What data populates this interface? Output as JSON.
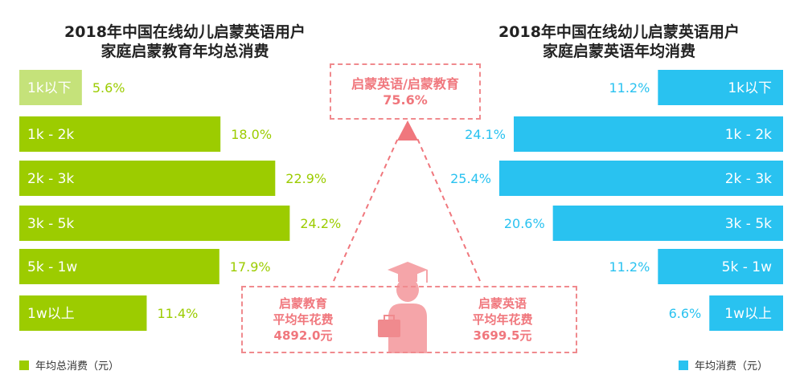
{
  "left_panel": {
    "title_line1": "2018年中国在线幼儿启蒙英语用户",
    "title_line2": "家庭启蒙教育年均总消费",
    "legend_label": "年均总消费（元）"
  },
  "right_panel": {
    "title_line1": "2018年中国在线幼儿启蒙英语用户",
    "title_line2": "家庭启蒙英语年均消费",
    "legend_label": "年均消费（元）"
  },
  "center": {
    "ratio_label": "启蒙英语/启蒙教育",
    "ratio_value": "75.6%",
    "edu_line1": "启蒙教育",
    "edu_line2": "平均年花费",
    "edu_value": "4892.0元",
    "eng_line1": "启蒙英语",
    "eng_line2": "平均年花费",
    "eng_value": "3699.5元"
  },
  "colors": {
    "left_bar": "#9ccc00",
    "left_bar_first": "#c5e27a",
    "right_bar": "#29c2f0",
    "accent_pink": "#f0777d",
    "figure": "#f5a5a9"
  },
  "chart_data": [
    {
      "type": "bar",
      "orientation": "horizontal",
      "categories": [
        "1k以下",
        "1k - 2k",
        "2k - 3k",
        "3k - 5k",
        "5k - 1w",
        "1w以上"
      ],
      "values": [
        5.6,
        18.0,
        22.9,
        24.2,
        17.9,
        11.4
      ],
      "value_labels": [
        "5.6%",
        "18.0%",
        "22.9%",
        "24.2%",
        "17.9%",
        "11.4%"
      ],
      "series": [
        {
          "name": "年均总消费（元）",
          "values": [
            5.6,
            18.0,
            22.9,
            24.2,
            17.9,
            11.4
          ]
        }
      ]
    },
    {
      "type": "bar",
      "orientation": "horizontal",
      "categories": [
        "1k以下",
        "1k - 2k",
        "2k - 3k",
        "3k - 5k",
        "5k - 1w",
        "1w以上"
      ],
      "values": [
        11.2,
        24.1,
        25.4,
        20.6,
        11.2,
        6.6
      ],
      "value_labels": [
        "11.2%",
        "24.1%",
        "25.4%",
        "20.6%",
        "11.2%",
        "6.6%"
      ],
      "series": [
        {
          "name": "年均消费（元）",
          "values": [
            11.2,
            24.1,
            25.4,
            20.6,
            11.2,
            6.6
          ]
        }
      ]
    }
  ]
}
